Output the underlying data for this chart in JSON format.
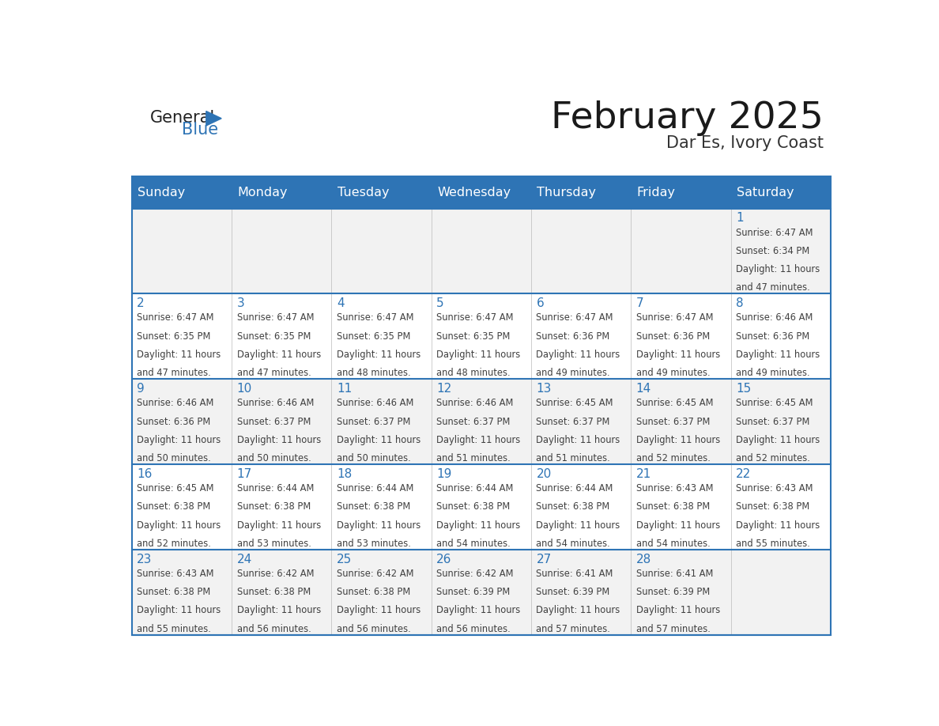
{
  "title": "February 2025",
  "subtitle": "Dar Es, Ivory Coast",
  "days_of_week": [
    "Sunday",
    "Monday",
    "Tuesday",
    "Wednesday",
    "Thursday",
    "Friday",
    "Saturday"
  ],
  "header_bg": "#2E74B5",
  "header_text_color": "#FFFFFF",
  "cell_bg_odd": "#F2F2F2",
  "cell_bg_even": "#FFFFFF",
  "grid_line_color": "#2E74B5",
  "day_number_color": "#2E74B5",
  "text_color": "#404040",
  "logo_general_color": "#222222",
  "logo_blue_color": "#2E74B5",
  "calendar_data": [
    {
      "day": 1,
      "col": 6,
      "row": 0,
      "sunrise": "6:47 AM",
      "sunset": "6:34 PM",
      "daylight_hours": 11,
      "daylight_minutes": 47
    },
    {
      "day": 2,
      "col": 0,
      "row": 1,
      "sunrise": "6:47 AM",
      "sunset": "6:35 PM",
      "daylight_hours": 11,
      "daylight_minutes": 47
    },
    {
      "day": 3,
      "col": 1,
      "row": 1,
      "sunrise": "6:47 AM",
      "sunset": "6:35 PM",
      "daylight_hours": 11,
      "daylight_minutes": 47
    },
    {
      "day": 4,
      "col": 2,
      "row": 1,
      "sunrise": "6:47 AM",
      "sunset": "6:35 PM",
      "daylight_hours": 11,
      "daylight_minutes": 48
    },
    {
      "day": 5,
      "col": 3,
      "row": 1,
      "sunrise": "6:47 AM",
      "sunset": "6:35 PM",
      "daylight_hours": 11,
      "daylight_minutes": 48
    },
    {
      "day": 6,
      "col": 4,
      "row": 1,
      "sunrise": "6:47 AM",
      "sunset": "6:36 PM",
      "daylight_hours": 11,
      "daylight_minutes": 49
    },
    {
      "day": 7,
      "col": 5,
      "row": 1,
      "sunrise": "6:47 AM",
      "sunset": "6:36 PM",
      "daylight_hours": 11,
      "daylight_minutes": 49
    },
    {
      "day": 8,
      "col": 6,
      "row": 1,
      "sunrise": "6:46 AM",
      "sunset": "6:36 PM",
      "daylight_hours": 11,
      "daylight_minutes": 49
    },
    {
      "day": 9,
      "col": 0,
      "row": 2,
      "sunrise": "6:46 AM",
      "sunset": "6:36 PM",
      "daylight_hours": 11,
      "daylight_minutes": 50
    },
    {
      "day": 10,
      "col": 1,
      "row": 2,
      "sunrise": "6:46 AM",
      "sunset": "6:37 PM",
      "daylight_hours": 11,
      "daylight_minutes": 50
    },
    {
      "day": 11,
      "col": 2,
      "row": 2,
      "sunrise": "6:46 AM",
      "sunset": "6:37 PM",
      "daylight_hours": 11,
      "daylight_minutes": 50
    },
    {
      "day": 12,
      "col": 3,
      "row": 2,
      "sunrise": "6:46 AM",
      "sunset": "6:37 PM",
      "daylight_hours": 11,
      "daylight_minutes": 51
    },
    {
      "day": 13,
      "col": 4,
      "row": 2,
      "sunrise": "6:45 AM",
      "sunset": "6:37 PM",
      "daylight_hours": 11,
      "daylight_minutes": 51
    },
    {
      "day": 14,
      "col": 5,
      "row": 2,
      "sunrise": "6:45 AM",
      "sunset": "6:37 PM",
      "daylight_hours": 11,
      "daylight_minutes": 52
    },
    {
      "day": 15,
      "col": 6,
      "row": 2,
      "sunrise": "6:45 AM",
      "sunset": "6:37 PM",
      "daylight_hours": 11,
      "daylight_minutes": 52
    },
    {
      "day": 16,
      "col": 0,
      "row": 3,
      "sunrise": "6:45 AM",
      "sunset": "6:38 PM",
      "daylight_hours": 11,
      "daylight_minutes": 52
    },
    {
      "day": 17,
      "col": 1,
      "row": 3,
      "sunrise": "6:44 AM",
      "sunset": "6:38 PM",
      "daylight_hours": 11,
      "daylight_minutes": 53
    },
    {
      "day": 18,
      "col": 2,
      "row": 3,
      "sunrise": "6:44 AM",
      "sunset": "6:38 PM",
      "daylight_hours": 11,
      "daylight_minutes": 53
    },
    {
      "day": 19,
      "col": 3,
      "row": 3,
      "sunrise": "6:44 AM",
      "sunset": "6:38 PM",
      "daylight_hours": 11,
      "daylight_minutes": 54
    },
    {
      "day": 20,
      "col": 4,
      "row": 3,
      "sunrise": "6:44 AM",
      "sunset": "6:38 PM",
      "daylight_hours": 11,
      "daylight_minutes": 54
    },
    {
      "day": 21,
      "col": 5,
      "row": 3,
      "sunrise": "6:43 AM",
      "sunset": "6:38 PM",
      "daylight_hours": 11,
      "daylight_minutes": 54
    },
    {
      "day": 22,
      "col": 6,
      "row": 3,
      "sunrise": "6:43 AM",
      "sunset": "6:38 PM",
      "daylight_hours": 11,
      "daylight_minutes": 55
    },
    {
      "day": 23,
      "col": 0,
      "row": 4,
      "sunrise": "6:43 AM",
      "sunset": "6:38 PM",
      "daylight_hours": 11,
      "daylight_minutes": 55
    },
    {
      "day": 24,
      "col": 1,
      "row": 4,
      "sunrise": "6:42 AM",
      "sunset": "6:38 PM",
      "daylight_hours": 11,
      "daylight_minutes": 56
    },
    {
      "day": 25,
      "col": 2,
      "row": 4,
      "sunrise": "6:42 AM",
      "sunset": "6:38 PM",
      "daylight_hours": 11,
      "daylight_minutes": 56
    },
    {
      "day": 26,
      "col": 3,
      "row": 4,
      "sunrise": "6:42 AM",
      "sunset": "6:39 PM",
      "daylight_hours": 11,
      "daylight_minutes": 56
    },
    {
      "day": 27,
      "col": 4,
      "row": 4,
      "sunrise": "6:41 AM",
      "sunset": "6:39 PM",
      "daylight_hours": 11,
      "daylight_minutes": 57
    },
    {
      "day": 28,
      "col": 5,
      "row": 4,
      "sunrise": "6:41 AM",
      "sunset": "6:39 PM",
      "daylight_hours": 11,
      "daylight_minutes": 57
    }
  ]
}
